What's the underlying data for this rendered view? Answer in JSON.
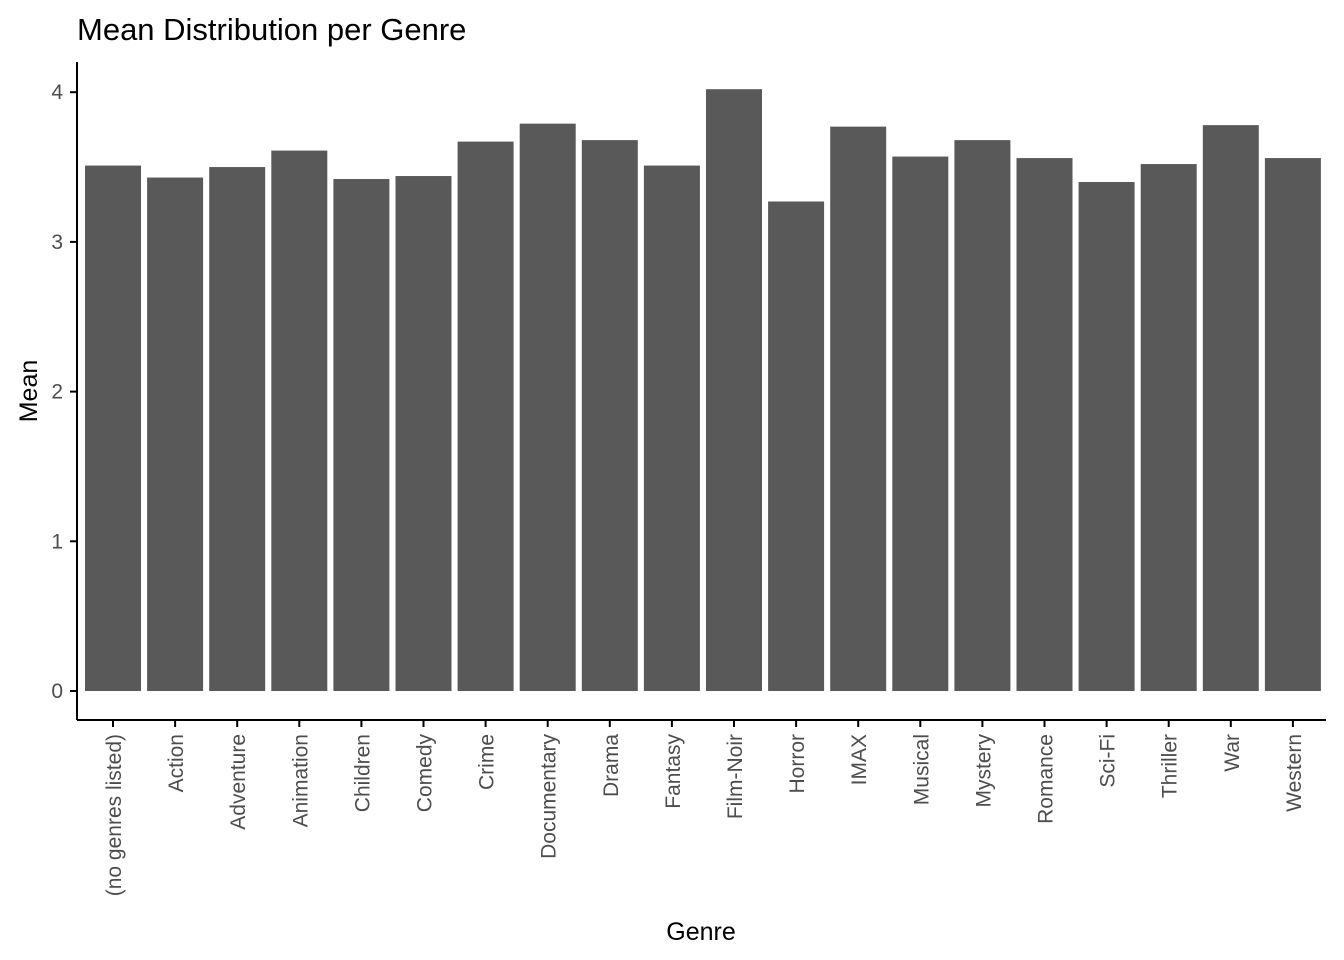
{
  "chart_data": {
    "type": "bar",
    "title": "Mean Distribution per Genre",
    "xlabel": "Genre",
    "ylabel": "Mean",
    "categories": [
      "(no genres listed)",
      "Action",
      "Adventure",
      "Animation",
      "Children",
      "Comedy",
      "Crime",
      "Documentary",
      "Drama",
      "Fantasy",
      "Film-Noir",
      "Horror",
      "IMAX",
      "Musical",
      "Mystery",
      "Romance",
      "Sci-Fi",
      "Thriller",
      "War",
      "Western"
    ],
    "values": [
      3.51,
      3.43,
      3.5,
      3.61,
      3.42,
      3.44,
      3.67,
      3.79,
      3.68,
      3.51,
      4.02,
      3.27,
      3.77,
      3.57,
      3.68,
      3.56,
      3.4,
      3.52,
      3.78,
      3.56
    ],
    "ylim": [
      0,
      4.2
    ],
    "yticks": [
      0,
      1,
      2,
      3,
      4
    ],
    "grid": false,
    "legend": "none",
    "colors": {
      "bar": "#595959",
      "axis": "#000000",
      "tick_text": "#4d4d4d"
    }
  }
}
